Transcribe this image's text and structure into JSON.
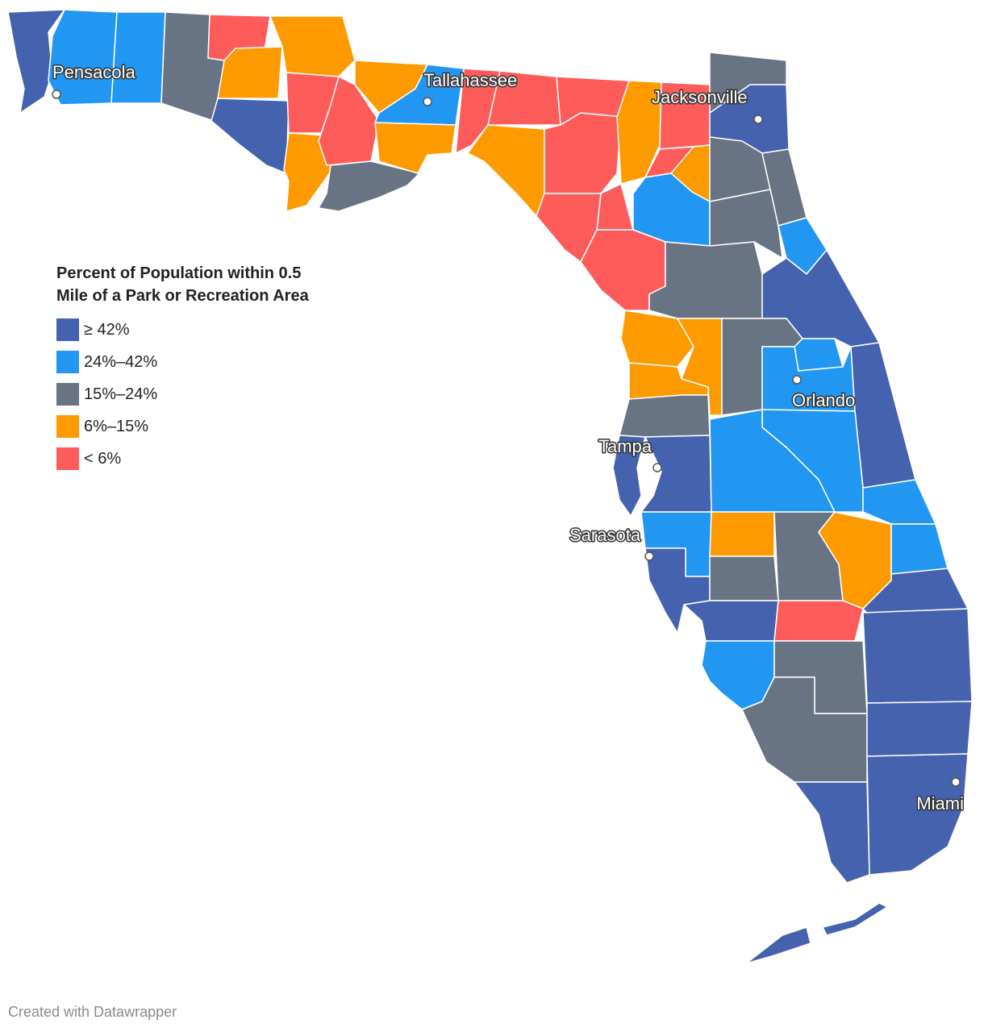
{
  "legend": {
    "title": "Percent of Population within 0.5 Mile of a Park or Recreation Area",
    "items": [
      {
        "id": "c1",
        "label": "≥ 42%",
        "color": "#4462ae"
      },
      {
        "id": "c2",
        "label": "24%–42%",
        "color": "#2197f2"
      },
      {
        "id": "c3",
        "label": "15%–24%",
        "color": "#687384"
      },
      {
        "id": "c4",
        "label": "6%–15%",
        "color": "#fd9a00"
      },
      {
        "id": "c5",
        "label": "< 6%",
        "color": "#fd5c5a"
      }
    ]
  },
  "cities": [
    {
      "name": "Pensacola"
    },
    {
      "name": "Tallahassee"
    },
    {
      "name": "Jacksonville"
    },
    {
      "name": "Orlando"
    },
    {
      "name": "Tampa"
    },
    {
      "name": "Sarasota"
    },
    {
      "name": "Miami"
    }
  ],
  "credit": "Created with Datawrapper"
}
